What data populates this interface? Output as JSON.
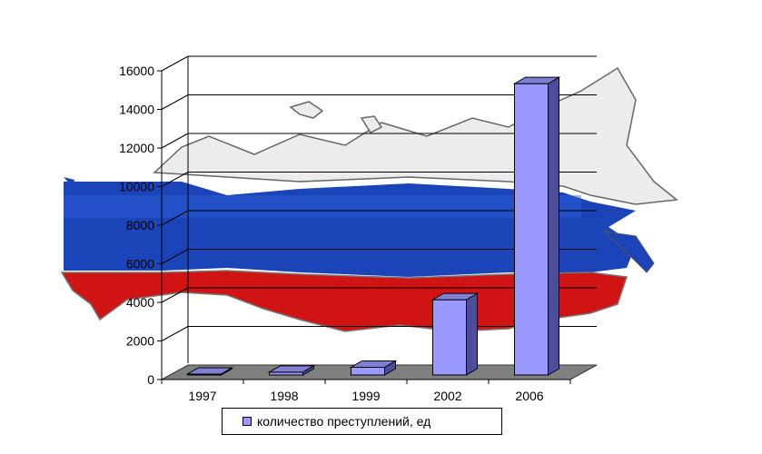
{
  "chart_data": {
    "type": "bar",
    "categories": [
      "1997",
      "1998",
      "1999",
      "2002",
      "2006"
    ],
    "series": [
      {
        "name": "количество преступлений, ед",
        "values": [
          50,
          150,
          400,
          3900,
          15100
        ]
      }
    ],
    "y_ticks": [
      "0",
      "2000",
      "4000",
      "6000",
      "8000",
      "10000",
      "12000",
      "14000",
      "16000"
    ],
    "ylim": [
      0,
      16000
    ],
    "grid": true,
    "legend_position": "bottom",
    "colors": {
      "bar_front": "#9999ff",
      "bar_side": "#4d4d99",
      "bar_top": "#7f7fd4",
      "floor": "#7f7f7f"
    },
    "background": "russia-map-flag"
  }
}
